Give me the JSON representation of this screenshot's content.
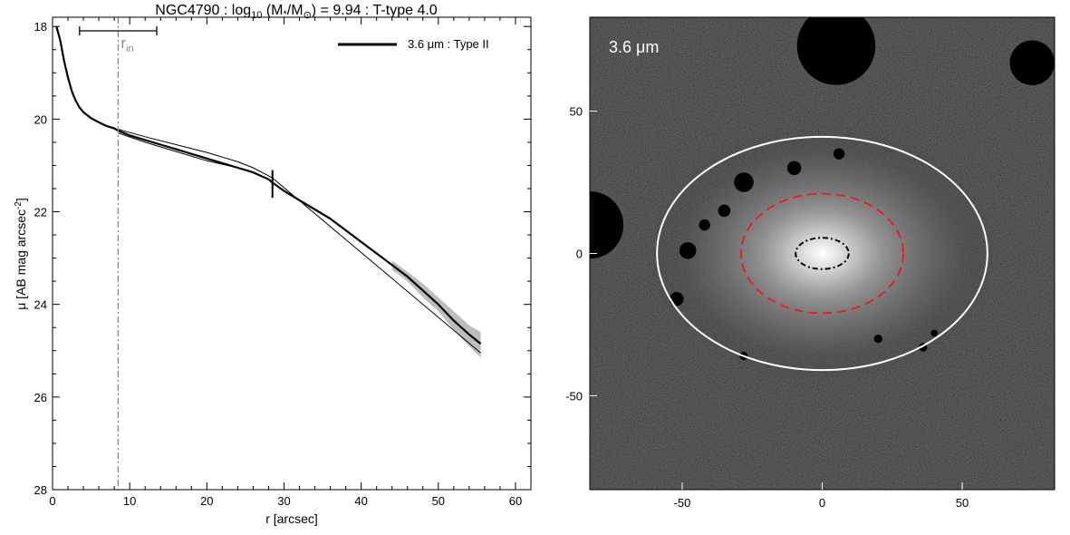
{
  "chart_data": [
    {
      "type": "line",
      "title": {
        "prefix": "NGC4790 : log",
        "sub": "10",
        "mid": " (M",
        "star": "*",
        "slash": "/M",
        "sun": "⊙",
        "suffix": ") = 9.94 : T-type 4.0"
      },
      "xlabel": "r [arcsec]",
      "ylabel": {
        "main": "μ [AB mag arcsec",
        "sup": "-2",
        "end": "]"
      },
      "xlim": [
        0,
        62
      ],
      "ylim": [
        28,
        17.8
      ],
      "y_inverted": true,
      "xticks": [
        0,
        10,
        20,
        30,
        40,
        50,
        60
      ],
      "yticks": [
        18,
        20,
        22,
        24,
        26,
        28
      ],
      "legend": {
        "label": "3.6 μm : Type II",
        "placement": "top-right"
      },
      "annotations": {
        "r_in": {
          "x": 8.5,
          "label": "r",
          "sub": "in"
        },
        "r_in_range": [
          3.5,
          13.5
        ],
        "break_marker": {
          "x": 28.5,
          "y": [
            21.1,
            21.7
          ]
        }
      },
      "series": [
        {
          "role": "main-profile",
          "x": [
            0.5,
            1.0,
            1.5,
            2.0,
            2.5,
            3.0,
            3.5,
            4.0,
            5.0,
            6.0,
            7.0,
            8.0,
            8.5,
            10,
            12,
            14,
            16,
            18,
            20,
            22,
            24,
            26,
            28,
            28.5,
            30,
            32,
            34,
            36,
            38,
            40,
            42,
            44,
            46,
            48,
            50,
            52,
            54,
            55.5
          ],
          "y": [
            18.0,
            18.3,
            18.75,
            19.1,
            19.4,
            19.6,
            19.75,
            19.85,
            19.98,
            20.07,
            20.15,
            20.2,
            20.25,
            20.35,
            20.45,
            20.55,
            20.65,
            20.75,
            20.85,
            20.95,
            21.05,
            21.15,
            21.3,
            21.37,
            21.55,
            21.75,
            21.95,
            22.15,
            22.4,
            22.65,
            22.9,
            23.15,
            23.4,
            23.7,
            24.0,
            24.35,
            24.65,
            24.85
          ]
        },
        {
          "role": "fit-inner-upper",
          "x": [
            8.5,
            12,
            16,
            20,
            24,
            26,
            28.5
          ],
          "y": [
            20.22,
            20.38,
            20.55,
            20.72,
            20.92,
            21.05,
            21.27
          ]
        },
        {
          "role": "fit-inner-lower",
          "x": [
            8.5,
            12,
            16,
            20,
            24,
            26,
            28.5
          ],
          "y": [
            20.3,
            20.5,
            20.7,
            20.9,
            21.05,
            21.15,
            21.35
          ]
        },
        {
          "role": "fit-outer",
          "x": [
            28.5,
            55.5
          ],
          "y": [
            21.27,
            25.05
          ]
        }
      ],
      "uncertainty_band": {
        "x": [
          44,
          46,
          48,
          50,
          52,
          54,
          55.5
        ],
        "y_low": [
          23.05,
          23.3,
          23.55,
          23.85,
          24.15,
          24.45,
          24.6
        ],
        "y_high": [
          23.25,
          23.5,
          23.85,
          24.15,
          24.55,
          24.9,
          25.15
        ]
      }
    },
    {
      "type": "image",
      "label": "3.6 μm",
      "xlim": [
        -83,
        83
      ],
      "ylim": [
        -83,
        83
      ],
      "xticks": [
        -50,
        0,
        50
      ],
      "yticks": [
        -50,
        0,
        50
      ],
      "ellipses": [
        {
          "role": "outer-limit",
          "color": "#ffffff",
          "style": "solid",
          "cx": 0,
          "cy": 0,
          "rx": 59,
          "ry": 41
        },
        {
          "role": "break-radius",
          "color": "#e82020",
          "style": "dashed",
          "cx": 0,
          "cy": 0,
          "rx": 29,
          "ry": 21
        },
        {
          "role": "inner-radius",
          "color": "#000000",
          "style": "dash-dot",
          "cx": 0,
          "cy": 0,
          "rx": 9.5,
          "ry": 5.5
        }
      ],
      "masks": [
        {
          "cx": 5,
          "cy": 73,
          "r": 14
        },
        {
          "cx": 75,
          "cy": 67,
          "r": 8
        },
        {
          "cx": -28,
          "cy": 25,
          "r": 3.5
        },
        {
          "cx": -10,
          "cy": 30,
          "r": 2.5
        },
        {
          "cx": 6,
          "cy": 35,
          "r": 2
        },
        {
          "cx": -35,
          "cy": 15,
          "r": 2.2
        },
        {
          "cx": -42,
          "cy": 10,
          "r": 2
        },
        {
          "cx": -48,
          "cy": 1,
          "r": 3
        },
        {
          "cx": -52,
          "cy": -16,
          "r": 2.5
        },
        {
          "cx": -83,
          "cy": 10,
          "r": 12
        },
        {
          "cx": 20,
          "cy": -30,
          "r": 1.5
        },
        {
          "cx": -28,
          "cy": -36,
          "r": 1.5
        },
        {
          "cx": 36,
          "cy": -33,
          "r": 1.5
        },
        {
          "cx": 40,
          "cy": -28,
          "r": 1.2
        }
      ]
    }
  ]
}
